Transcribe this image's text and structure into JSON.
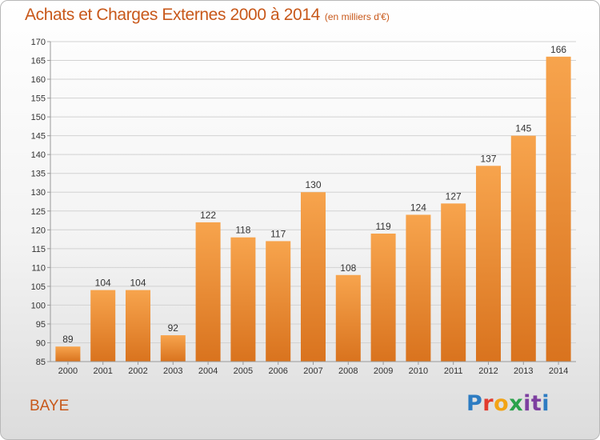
{
  "header": {
    "title": "Achats et Charges Externes 2000 à 2014",
    "unit": "(en milliers d'€)"
  },
  "entity": "BAYE",
  "logo": {
    "text": "Proxiti",
    "colors": [
      "#2e7cc2",
      "#e23b2e",
      "#f2a315",
      "#2aa24b",
      "#7d3fa0",
      "#7d3fa0",
      "#2e7cc2"
    ]
  },
  "chart_data": {
    "type": "bar",
    "title": "Achats et Charges Externes 2000 à 2014",
    "subtitle": "(en milliers d'€)",
    "categories": [
      "2000",
      "2001",
      "2002",
      "2003",
      "2004",
      "2005",
      "2006",
      "2007",
      "2008",
      "2009",
      "2010",
      "2011",
      "2012",
      "2013",
      "2014"
    ],
    "values": [
      89,
      104,
      104,
      92,
      122,
      118,
      117,
      130,
      108,
      119,
      124,
      127,
      137,
      145,
      166
    ],
    "ylim": [
      85,
      170
    ],
    "yticks": [
      85,
      90,
      95,
      100,
      105,
      110,
      115,
      120,
      125,
      130,
      135,
      140,
      145,
      150,
      155,
      160,
      165,
      170
    ],
    "grid": true,
    "legend": "none",
    "bar_color_light": "#f7a44d",
    "bar_color_dark": "#d9731e"
  }
}
